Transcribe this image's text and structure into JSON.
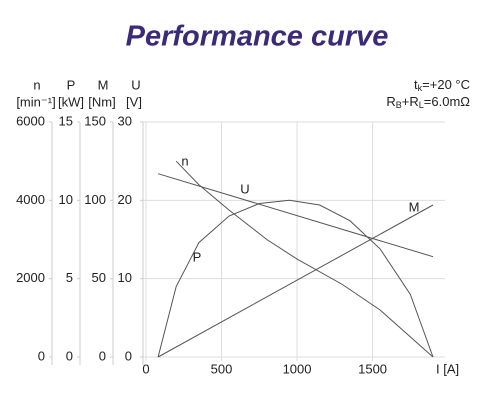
{
  "chart_data": {
    "type": "line",
    "title": "Performance curve",
    "annotations": [
      [
        "t",
        "k",
        "=+20  °C"
      ],
      [
        "R",
        "B",
        "+R",
        "L",
        "=6.0mΩ"
      ]
    ],
    "xlabel": "I [A]",
    "xlim": [
      0,
      1900
    ],
    "xticks": [
      0,
      500,
      1000,
      1500
    ],
    "y_axes": [
      {
        "name": "n",
        "unit": "[min⁻¹]",
        "ylim": [
          0,
          6000
        ],
        "yticks": [
          0,
          2000,
          4000,
          6000
        ]
      },
      {
        "name": "P",
        "unit": "[kW]",
        "ylim": [
          0,
          15
        ],
        "yticks": [
          0,
          5,
          10,
          15
        ]
      },
      {
        "name": "M",
        "unit": "[Nm]",
        "ylim": [
          0,
          150
        ],
        "yticks": [
          0,
          50,
          100,
          150
        ]
      },
      {
        "name": "U",
        "unit": "[V]",
        "ylim": [
          0,
          30
        ],
        "yticks": [
          0,
          10,
          20,
          30
        ]
      }
    ],
    "grid": true,
    "series": [
      {
        "name": "n",
        "axis": 0,
        "color": "#555555",
        "x": [
          200,
          350,
          550,
          800,
          1000,
          1300,
          1550,
          1900
        ],
        "values": [
          5000,
          4400,
          3750,
          3000,
          2500,
          1850,
          1200,
          0
        ]
      },
      {
        "name": "P",
        "axis": 1,
        "color": "#555555",
        "x": [
          80,
          200,
          350,
          550,
          750,
          950,
          1150,
          1350,
          1550,
          1750,
          1900
        ],
        "values": [
          0,
          4.5,
          7.3,
          9,
          9.8,
          10,
          9.7,
          8.7,
          6.9,
          4,
          0
        ]
      },
      {
        "name": "M",
        "axis": 2,
        "color": "#555555",
        "x": [
          80,
          1900
        ],
        "values": [
          0,
          97
        ]
      },
      {
        "name": "U",
        "axis": 3,
        "color": "#555555",
        "x": [
          80,
          1900
        ],
        "values": [
          23.4,
          12.8
        ]
      }
    ]
  }
}
